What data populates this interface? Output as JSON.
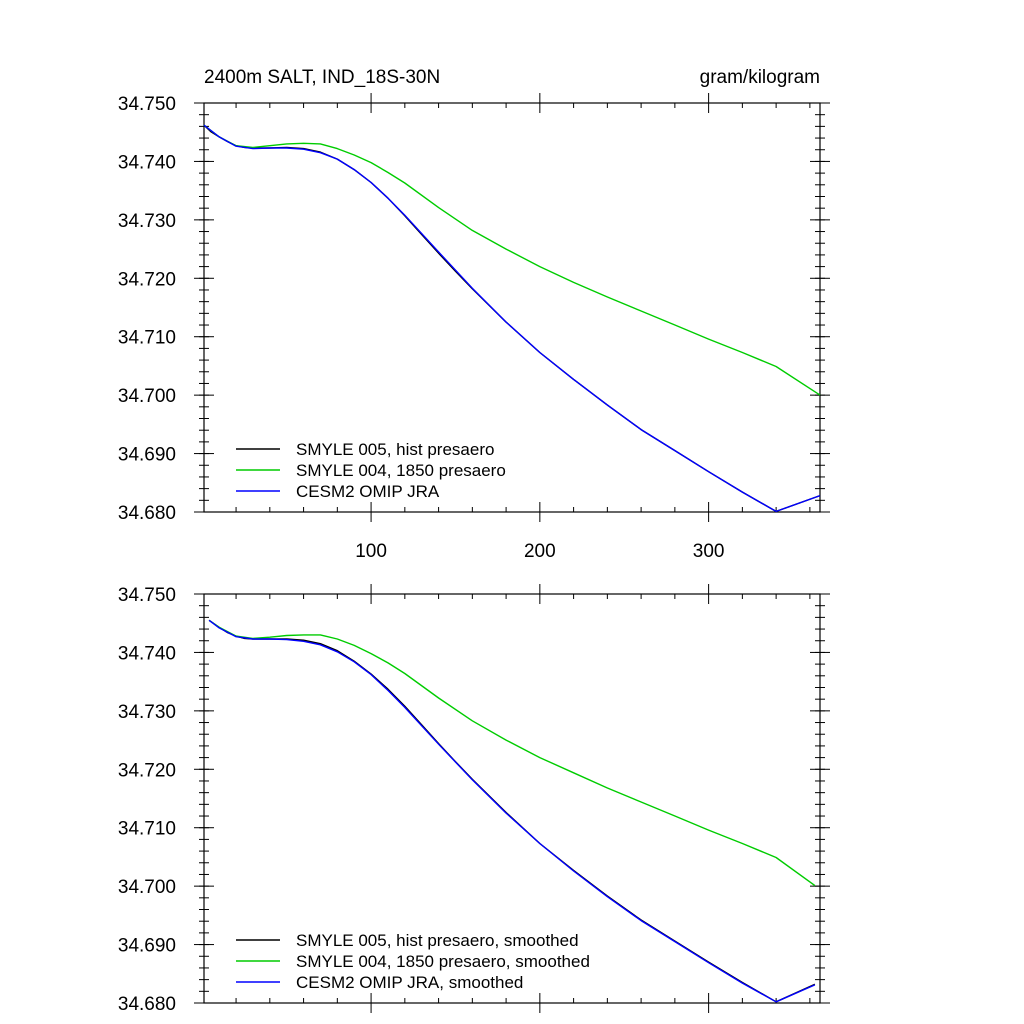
{
  "chart_data": [
    {
      "type": "line",
      "title": "2400m SALT, IND_18S-30N",
      "units": "gram/kilogram",
      "xlim": [
        1,
        366
      ],
      "ylim": [
        34.68,
        34.75
      ],
      "x_major_ticks": [
        100,
        200,
        300
      ],
      "x_tick_labels": [
        "100",
        "200",
        "300"
      ],
      "show_x_tick_labels": true,
      "y_major_ticks": [
        34.68,
        34.69,
        34.7,
        34.71,
        34.72,
        34.73,
        34.74,
        34.75
      ],
      "y_tick_labels": [
        "34.680",
        "34.690",
        "34.700",
        "34.710",
        "34.720",
        "34.730",
        "34.740",
        "34.750"
      ],
      "grid": false,
      "legend_position": "bottom-left",
      "series": [
        {
          "name": "SMYLE 005, hist presaero",
          "color": "#000000",
          "x": [
            1,
            5,
            10,
            15,
            20,
            25,
            30,
            40,
            50,
            60,
            70,
            80,
            90,
            100,
            110,
            120,
            130,
            140,
            150,
            160,
            180,
            200,
            220,
            240,
            260,
            280,
            300,
            320,
            340,
            366
          ],
          "y": [
            34.7462,
            34.7451,
            34.7442,
            34.7434,
            34.7427,
            34.7424,
            34.7423,
            34.7423,
            34.7424,
            34.7422,
            34.7416,
            34.7404,
            34.7386,
            34.7364,
            34.7337,
            34.7307,
            34.7275,
            34.7243,
            34.7212,
            34.7182,
            34.7125,
            34.7073,
            34.7027,
            34.6983,
            34.6941,
            34.6905,
            34.6869,
            34.6834,
            34.6801,
            34.6828
          ]
        },
        {
          "name": "SMYLE 004, 1850 presaero",
          "color": "#00cc00",
          "x": [
            1,
            10,
            20,
            30,
            40,
            50,
            60,
            70,
            80,
            90,
            100,
            110,
            120,
            140,
            160,
            180,
            200,
            220,
            240,
            260,
            280,
            300,
            320,
            340,
            366
          ],
          "y": [
            34.7462,
            34.7442,
            34.7427,
            34.7424,
            34.7427,
            34.743,
            34.7431,
            34.743,
            34.7422,
            34.7411,
            34.7398,
            34.7381,
            34.7363,
            34.7321,
            34.7282,
            34.725,
            34.722,
            34.7193,
            34.7168,
            34.7144,
            34.712,
            34.7096,
            34.7073,
            34.7049,
            34.7
          ]
        },
        {
          "name": "CESM2 OMIP JRA",
          "color": "#0000ff",
          "x": [
            1,
            10,
            20,
            30,
            40,
            50,
            60,
            70,
            80,
            90,
            100,
            110,
            120,
            140,
            160,
            180,
            200,
            220,
            240,
            260,
            280,
            300,
            320,
            340,
            366
          ],
          "y": [
            34.7462,
            34.7442,
            34.7426,
            34.7422,
            34.7423,
            34.7423,
            34.7421,
            34.7415,
            34.7404,
            34.7386,
            34.7364,
            34.7337,
            34.7308,
            34.7245,
            34.7183,
            34.7125,
            34.7073,
            34.7027,
            34.6983,
            34.6941,
            34.6905,
            34.6869,
            34.6834,
            34.6801,
            34.6828
          ]
        }
      ]
    },
    {
      "type": "line",
      "title": "",
      "units": "",
      "xlim": [
        1,
        366
      ],
      "ylim": [
        34.68,
        34.75
      ],
      "x_major_ticks": [
        100,
        200,
        300
      ],
      "x_tick_labels": [],
      "show_x_tick_labels": false,
      "y_major_ticks": [
        34.68,
        34.69,
        34.7,
        34.71,
        34.72,
        34.73,
        34.74,
        34.75
      ],
      "y_tick_labels": [
        "34.680",
        "34.690",
        "34.700",
        "34.710",
        "34.720",
        "34.730",
        "34.740",
        "34.750"
      ],
      "grid": false,
      "legend_position": "bottom-left",
      "series": [
        {
          "name": "SMYLE 005, hist presaero, smoothed",
          "color": "#000000",
          "x": [
            4,
            10,
            15,
            20,
            25,
            30,
            40,
            50,
            60,
            70,
            80,
            90,
            100,
            110,
            120,
            130,
            140,
            150,
            160,
            180,
            200,
            220,
            240,
            260,
            280,
            300,
            320,
            340,
            363
          ],
          "y": [
            34.7455,
            34.7443,
            34.7434,
            34.7428,
            34.7424,
            34.7423,
            34.7423,
            34.7423,
            34.7421,
            34.7415,
            34.7403,
            34.7385,
            34.7363,
            34.7337,
            34.7308,
            34.7276,
            34.7244,
            34.7213,
            34.7183,
            34.7126,
            34.7073,
            34.7027,
            34.6983,
            34.6942,
            34.6906,
            34.687,
            34.6835,
            34.6802,
            34.6832
          ]
        },
        {
          "name": "SMYLE 004, 1850 presaero, smoothed",
          "color": "#00cc00",
          "x": [
            4,
            10,
            20,
            30,
            40,
            50,
            60,
            70,
            80,
            90,
            100,
            110,
            120,
            140,
            160,
            180,
            200,
            220,
            240,
            260,
            280,
            300,
            320,
            340,
            363
          ],
          "y": [
            34.7455,
            34.7443,
            34.7428,
            34.7424,
            34.7426,
            34.7429,
            34.743,
            34.743,
            34.7423,
            34.7412,
            34.7398,
            34.7382,
            34.7364,
            34.7322,
            34.7283,
            34.725,
            34.722,
            34.7194,
            34.7168,
            34.7144,
            34.712,
            34.7096,
            34.7073,
            34.7049,
            34.7001
          ]
        },
        {
          "name": "CESM2 OMIP JRA, smoothed",
          "color": "#0000ff",
          "x": [
            4,
            10,
            20,
            30,
            40,
            50,
            60,
            70,
            80,
            90,
            100,
            110,
            120,
            140,
            160,
            180,
            200,
            220,
            240,
            260,
            280,
            300,
            320,
            340,
            363
          ],
          "y": [
            34.7455,
            34.7442,
            34.7427,
            34.7423,
            34.7423,
            34.7422,
            34.7419,
            34.7413,
            34.7401,
            34.7384,
            34.7362,
            34.7335,
            34.7306,
            34.7243,
            34.7182,
            34.7125,
            34.7073,
            34.7026,
            34.6982,
            34.6941,
            34.6905,
            34.6869,
            34.6834,
            34.6802,
            34.6831
          ]
        }
      ]
    }
  ]
}
